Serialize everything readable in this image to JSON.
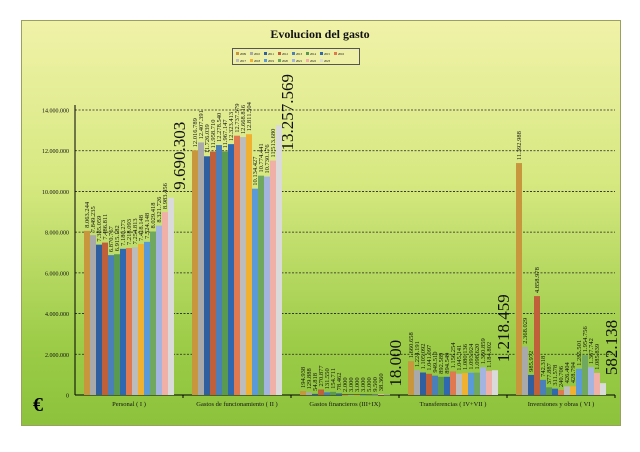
{
  "chart_data": {
    "type": "bar",
    "title": "Evolucion del gasto",
    "xlabel": "",
    "ylabel": "€",
    "ylim": [
      0,
      14000000
    ],
    "yticks": [
      "0",
      "2.000.000",
      "4.000.000",
      "6.000.000",
      "8.000.000",
      "10.000.000",
      "12.000.000",
      "14.000.000"
    ],
    "grid": true,
    "legend_position": "top-center",
    "categories": [
      "Personal ( I )",
      "Gastos de funcionamiento ( II )",
      "Gastos financieros (III+IX)",
      "Transferencias ( IV+VII )",
      "Inversiones y obras ( VI )"
    ],
    "series": [
      {
        "name": "2009",
        "color": "#c8963c",
        "values": [
          8063244,
          12016789,
          194938,
          1660658,
          11392988
        ]
      },
      {
        "name": "2010",
        "color": "#a9a9a9",
        "values": [
          7849235,
          12407391,
          129888,
          1224191,
          2368029
        ]
      },
      {
        "name": "2011",
        "color": "#2f5f9e",
        "values": [
          7385059,
          11726039,
          54818,
          1105092,
          985972
        ]
      },
      {
        "name": "2012",
        "color": "#c0603a",
        "values": [
          7486811,
          11958710,
          270877,
          1041097,
          4858978
        ]
      },
      {
        "name": "2013",
        "color": "#4a7fb8",
        "values": [
          6870767,
          12278540,
          131550,
          949510,
          742318
        ]
      },
      {
        "name": "2014",
        "color": "#5a9a50",
        "values": [
          6915182,
          11967147,
          154711,
          892589,
          377887
        ]
      },
      {
        "name": "2015",
        "color": "#2e68b0",
        "values": [
          7180273,
          12323413,
          78462,
          894549,
          311578
        ]
      },
      {
        "name": "2016",
        "color": "#e07850",
        "values": [
          7218093,
          12737579,
          2000,
          1156254,
          240706
        ]
      },
      {
        "name": "2017",
        "color": "#bcbcbc",
        "values": [
          7254813,
          12668816,
          3000,
          1045141,
          426404
        ]
      },
      {
        "name": "2018",
        "color": "#f0b030",
        "values": [
          7418148,
          12811504,
          3000,
          1080136,
          428794
        ]
      },
      {
        "name": "2019",
        "color": "#5a9ad8",
        "values": [
          7524148,
          10134427,
          3000,
          1093924,
          1285501
        ]
      },
      {
        "name": "2020",
        "color": "#70a860",
        "values": [
          8029418,
          10774441,
          5000,
          1098620,
          1954756
        ]
      },
      {
        "name": "2021",
        "color": "#a4b4e0",
        "values": [
          8321726,
          10730176,
          9500,
          1360859,
          1367742
        ]
      },
      {
        "name": "2022",
        "color": "#f0b0a8",
        "values": [
          8983456,
          11513680,
          38360,
          1184802,
          1085839
        ]
      },
      {
        "name": "2023",
        "color": "#dadada",
        "values": [
          9690303,
          13257569,
          18000,
          1218459,
          582138
        ]
      }
    ],
    "value_labels": [
      [
        "8.063.244",
        "7.849.235",
        "7.385.059",
        "7.486.811",
        "6.870.767",
        "6.915.182",
        "7.180.273",
        "7.218.093",
        "7.254.813",
        "7.418.148",
        "7.524.148",
        "8.029.418",
        "8.321.726",
        "8.983.456",
        "9.690.303"
      ],
      [
        "12.016.789",
        "12.407.391",
        "11.726.039",
        "11.958.710",
        "12.278.540",
        "11.967.147",
        "12.323.413",
        "12.737.579",
        "12.668.816",
        "12.811.504",
        "10.134.427",
        "10.774.441",
        "10.730.176",
        "11.513.680",
        "13.257.569"
      ],
      [
        "194.938",
        "129.888",
        "54.818",
        "270.877",
        "131.550",
        "154.711",
        "78.462",
        "2.000",
        "3.000",
        "3.000",
        "3.000",
        "5.000",
        "9.500",
        "38.360",
        "18.000"
      ],
      [
        "1.660.658",
        "1.224.191",
        "1.105.092",
        "1.041.097",
        "949.510",
        "892.589",
        "894.549",
        "1.156.254",
        "1.045.141",
        "1.080.136",
        "1.093.924",
        "1.098.620",
        "1.360.859",
        "1.184.802",
        "1.218.459"
      ],
      [
        "11.392.988",
        "2.368.029",
        "985.972",
        "4.858.978",
        "742.318",
        "377.887",
        "311.578",
        "240.706",
        "426.404",
        "428.794",
        "1.285.501",
        "1.954.756",
        "1.367.742",
        "1.085.839",
        "582.138"
      ]
    ]
  }
}
